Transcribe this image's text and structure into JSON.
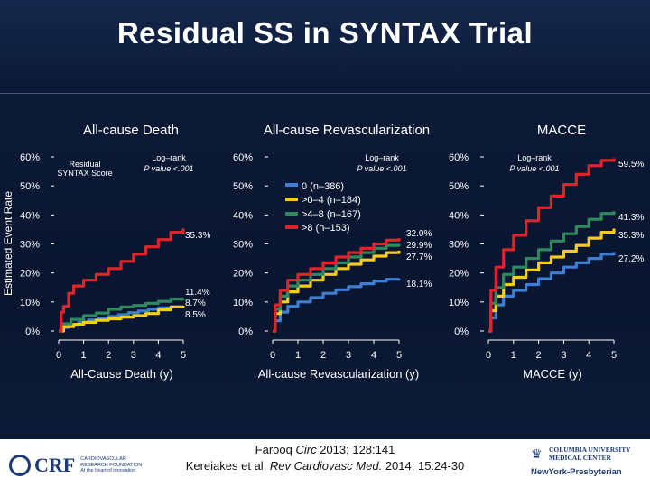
{
  "slide": {
    "title": "Residual SS in SYNTAX Trial",
    "y_axis_label": "Estimated Event Rate",
    "citation_line1_pre": "Farooq ",
    "citation_line1_ital": "Circ",
    "citation_line1_post": " 2013; 128:141",
    "citation_line2_pre": "Kereiakes et al, ",
    "citation_line2_ital": "Rev Cardiovasc Med.",
    "citation_line2_post": " 2014; 15:24-30",
    "logo_left": "CRF",
    "logo_left_sub1": "CARDIOVASCULAR",
    "logo_left_sub2": "RESEARCH FOUNDATION",
    "logo_left_sub3": "At the heart of innovation",
    "logo_right_line1": "COLUMBIA UNIVERSITY",
    "logo_right_line2": "MEDICAL CENTER",
    "logo_right_line3": "NewYork-Presbyterian"
  },
  "colors": {
    "background": "#0c1a36",
    "s0": "#3d7fd4",
    "s1": "#f5cc1e",
    "s2": "#2e8a5c",
    "s3": "#e0242a"
  },
  "chart_data": [
    {
      "type": "line",
      "title": "All-cause Death",
      "xlabel": "All-Cause Death (y)",
      "ylabel": "Estimated Event Rate",
      "xlim": [
        0,
        5
      ],
      "ylim": [
        0,
        60
      ],
      "xticks": [
        "0",
        "1",
        "2",
        "3",
        "4",
        "5"
      ],
      "yticks": [
        "0%",
        "10%",
        "20%",
        "30%",
        "40%",
        "50%",
        "60%"
      ],
      "annotation_title": "Residual",
      "annotation_title2": "SYNTAX Score",
      "logrank_label": "Log–rank",
      "pvalue_label": "P value <.001",
      "end_labels": [
        "35.3%",
        "11.4%",
        "8.7%",
        "8.5%"
      ],
      "series": [
        {
          "name": "0 (n–386)",
          "color": "#3d7fd4",
          "points": [
            [
              0,
              0
            ],
            [
              0.15,
              1.2
            ],
            [
              0.4,
              2.0
            ],
            [
              0.8,
              3.0
            ],
            [
              1.2,
              3.8
            ],
            [
              1.6,
              4.3
            ],
            [
              2.0,
              5.0
            ],
            [
              2.4,
              5.6
            ],
            [
              2.8,
              6.3
            ],
            [
              3.2,
              6.9
            ],
            [
              3.6,
              7.5
            ],
            [
              4.0,
              8.0
            ],
            [
              4.5,
              8.3
            ],
            [
              5.0,
              8.5
            ]
          ]
        },
        {
          "name": ">0–4 (n–184)",
          "color": "#f5cc1e",
          "points": [
            [
              0,
              0
            ],
            [
              0.2,
              1.5
            ],
            [
              0.6,
              2.3
            ],
            [
              1.0,
              3.0
            ],
            [
              1.5,
              3.7
            ],
            [
              2.0,
              4.2
            ],
            [
              2.5,
              4.8
            ],
            [
              3.0,
              5.3
            ],
            [
              3.5,
              6.0
            ],
            [
              4.0,
              7.3
            ],
            [
              4.5,
              8.3
            ],
            [
              5.0,
              8.7
            ]
          ]
        },
        {
          "name": ">4–8 (n–167)",
          "color": "#2e8a5c",
          "points": [
            [
              0,
              0
            ],
            [
              0.1,
              2.5
            ],
            [
              0.5,
              4.0
            ],
            [
              1.0,
              5.3
            ],
            [
              1.5,
              6.2
            ],
            [
              2.0,
              7.5
            ],
            [
              2.5,
              8.3
            ],
            [
              3.0,
              8.8
            ],
            [
              3.5,
              9.5
            ],
            [
              4.0,
              10.2
            ],
            [
              4.5,
              11.0
            ],
            [
              5.0,
              11.4
            ]
          ]
        },
        {
          "name": ">8 (n–153)",
          "color": "#e0242a",
          "points": [
            [
              0,
              0
            ],
            [
              0.1,
              6.5
            ],
            [
              0.2,
              8.5
            ],
            [
              0.4,
              13.0
            ],
            [
              0.6,
              15.5
            ],
            [
              1.0,
              17.5
            ],
            [
              1.5,
              19.5
            ],
            [
              2.0,
              21.5
            ],
            [
              2.5,
              24.0
            ],
            [
              3.0,
              26.5
            ],
            [
              3.5,
              29.0
            ],
            [
              4.0,
              31.5
            ],
            [
              4.5,
              34.0
            ],
            [
              5.0,
              35.3
            ]
          ]
        }
      ]
    },
    {
      "type": "line",
      "title": "All-cause Revascularization",
      "xlabel": "All-cause Revascularization (y)",
      "xlim": [
        0,
        5
      ],
      "ylim": [
        0,
        60
      ],
      "xticks": [
        "0",
        "1",
        "2",
        "3",
        "4",
        "5"
      ],
      "yticks": [
        "0%",
        "10%",
        "20%",
        "30%",
        "40%",
        "50%",
        "60%"
      ],
      "logrank_label": "Log–rank",
      "pvalue_label": "P value <.001",
      "end_labels": [
        "32.0%",
        "29.9%",
        "27.7%",
        "18.1%"
      ],
      "legend": [
        "0 (n–386)",
        ">0–4 (n–184)",
        ">4–8 (n–167)",
        ">8 (n–153)"
      ],
      "series": [
        {
          "name": "0 (n–386)",
          "color": "#3d7fd4",
          "points": [
            [
              0,
              0
            ],
            [
              0.1,
              3.5
            ],
            [
              0.3,
              6.5
            ],
            [
              0.6,
              8.5
            ],
            [
              1.0,
              10.0
            ],
            [
              1.5,
              11.5
            ],
            [
              2.0,
              13.0
            ],
            [
              2.5,
              14.2
            ],
            [
              3.0,
              15.3
            ],
            [
              3.5,
              16.3
            ],
            [
              4.0,
              17.2
            ],
            [
              4.5,
              17.8
            ],
            [
              5.0,
              18.1
            ]
          ]
        },
        {
          "name": ">0–4 (n–184)",
          "color": "#f5cc1e",
          "points": [
            [
              0,
              0
            ],
            [
              0.1,
              6.0
            ],
            [
              0.3,
              10.0
            ],
            [
              0.6,
              13.5
            ],
            [
              1.0,
              15.5
            ],
            [
              1.5,
              17.5
            ],
            [
              2.0,
              19.5
            ],
            [
              2.5,
              21.5
            ],
            [
              3.0,
              23.0
            ],
            [
              3.5,
              24.5
            ],
            [
              4.0,
              25.8
            ],
            [
              4.5,
              27.0
            ],
            [
              5.0,
              27.7
            ]
          ]
        },
        {
          "name": ">4–8 (n–167)",
          "color": "#2e8a5c",
          "points": [
            [
              0,
              0
            ],
            [
              0.1,
              7.5
            ],
            [
              0.3,
              12.0
            ],
            [
              0.6,
              15.5
            ],
            [
              1.0,
              17.5
            ],
            [
              1.5,
              19.5
            ],
            [
              2.0,
              21.5
            ],
            [
              2.5,
              23.5
            ],
            [
              3.0,
              25.5
            ],
            [
              3.5,
              27.0
            ],
            [
              4.0,
              28.5
            ],
            [
              4.5,
              29.5
            ],
            [
              5.0,
              29.9
            ]
          ]
        },
        {
          "name": ">8 (n–153)",
          "color": "#e0242a",
          "points": [
            [
              0,
              0
            ],
            [
              0.1,
              9.0
            ],
            [
              0.3,
              14.0
            ],
            [
              0.6,
              17.5
            ],
            [
              1.0,
              19.5
            ],
            [
              1.5,
              21.5
            ],
            [
              2.0,
              23.5
            ],
            [
              2.5,
              25.5
            ],
            [
              3.0,
              27.0
            ],
            [
              3.5,
              28.5
            ],
            [
              4.0,
              30.0
            ],
            [
              4.5,
              31.3
            ],
            [
              5.0,
              32.0
            ]
          ]
        }
      ]
    },
    {
      "type": "line",
      "title": "MACCE",
      "xlabel": "MACCE (y)",
      "xlim": [
        0,
        5
      ],
      "ylim": [
        0,
        60
      ],
      "xticks": [
        "0",
        "1",
        "2",
        "3",
        "4",
        "5"
      ],
      "yticks": [
        "0%",
        "10%",
        "20%",
        "30%",
        "40%",
        "50%",
        "60%"
      ],
      "logrank_label": "Log–rank",
      "pvalue_label": "P value <.001",
      "end_labels": [
        "59.5%",
        "41.3%",
        "35.3%",
        "27.2%"
      ],
      "series": [
        {
          "name": "0 (n–386)",
          "color": "#3d7fd4",
          "points": [
            [
              0,
              0
            ],
            [
              0.1,
              4.5
            ],
            [
              0.3,
              9.0
            ],
            [
              0.6,
              12.0
            ],
            [
              1.0,
              14.0
            ],
            [
              1.5,
              16.0
            ],
            [
              2.0,
              18.0
            ],
            [
              2.5,
              20.0
            ],
            [
              3.0,
              22.0
            ],
            [
              3.5,
              23.5
            ],
            [
              4.0,
              25.0
            ],
            [
              4.5,
              26.5
            ],
            [
              5.0,
              27.2
            ]
          ]
        },
        {
          "name": ">0–4 (n–184)",
          "color": "#f5cc1e",
          "points": [
            [
              0,
              0
            ],
            [
              0.1,
              7.0
            ],
            [
              0.3,
              12.0
            ],
            [
              0.6,
              16.0
            ],
            [
              1.0,
              18.5
            ],
            [
              1.5,
              21.0
            ],
            [
              2.0,
              23.5
            ],
            [
              2.5,
              25.5
            ],
            [
              3.0,
              27.5
            ],
            [
              3.5,
              29.5
            ],
            [
              4.0,
              32.0
            ],
            [
              4.5,
              34.0
            ],
            [
              5.0,
              35.3
            ]
          ]
        },
        {
          "name": ">4–8 (n–167)",
          "color": "#2e8a5c",
          "points": [
            [
              0,
              0
            ],
            [
              0.1,
              9.5
            ],
            [
              0.3,
              15.0
            ],
            [
              0.6,
              19.5
            ],
            [
              1.0,
              22.0
            ],
            [
              1.5,
              25.0
            ],
            [
              2.0,
              28.0
            ],
            [
              2.5,
              31.0
            ],
            [
              3.0,
              33.5
            ],
            [
              3.5,
              36.0
            ],
            [
              4.0,
              38.5
            ],
            [
              4.5,
              40.5
            ],
            [
              5.0,
              41.3
            ]
          ]
        },
        {
          "name": ">8 (n–153)",
          "color": "#e0242a",
          "points": [
            [
              0,
              0
            ],
            [
              0.1,
              14.0
            ],
            [
              0.3,
              22.0
            ],
            [
              0.6,
              28.0
            ],
            [
              1.0,
              33.0
            ],
            [
              1.5,
              38.0
            ],
            [
              2.0,
              42.5
            ],
            [
              2.5,
              46.5
            ],
            [
              3.0,
              50.5
            ],
            [
              3.5,
              54.0
            ],
            [
              4.0,
              57.0
            ],
            [
              4.5,
              58.8
            ],
            [
              5.0,
              59.5
            ]
          ]
        }
      ]
    }
  ]
}
